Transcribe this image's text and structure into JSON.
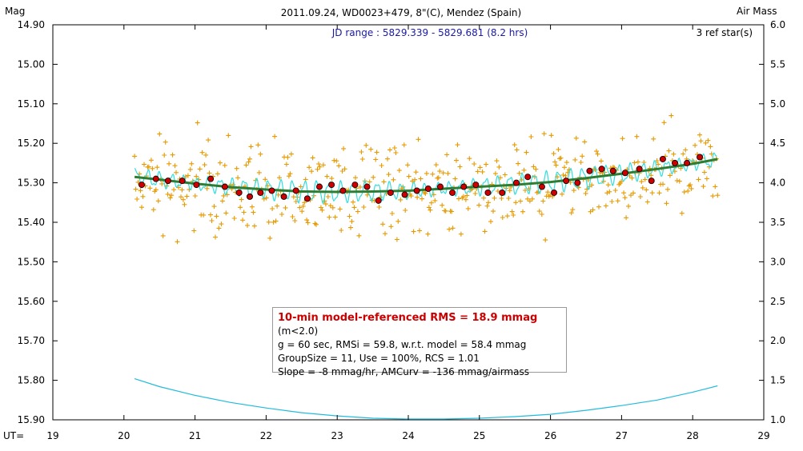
{
  "chart_data": {
    "type": "scatter",
    "title": "2011.09.24, WD0023+479, 8\"(C), Mendez (Spain)",
    "subtitle": "JD range : 5829.339 - 5829.681 (8.2 hrs)",
    "ref_stars": "3 ref star(s)",
    "ylabel_left": "Mag",
    "ylabel_right": "Air Mass",
    "xlabel": "UT=",
    "xlim": [
      19,
      29
    ],
    "ylim": [
      15.9,
      14.9
    ],
    "y2lim": [
      1.0,
      6.0
    ],
    "x_ticks": [
      "19",
      "20",
      "21",
      "22",
      "23",
      "24",
      "25",
      "26",
      "27",
      "28",
      "29"
    ],
    "y_ticks": [
      "14.90",
      "15.00",
      "15.10",
      "15.20",
      "15.30",
      "15.40",
      "15.50",
      "15.60",
      "15.70",
      "15.80",
      "15.90"
    ],
    "y2_ticks": [
      "6.0",
      "5.5",
      "5.0",
      "4.5",
      "4.0",
      "3.5",
      "3.0",
      "2.5",
      "2.0",
      "1.5",
      "1.0"
    ],
    "series": [
      {
        "name": "10-min averages",
        "color": "#cc0000",
        "x": [
          20.25,
          20.45,
          20.62,
          20.82,
          21.02,
          21.22,
          21.42,
          21.62,
          21.77,
          21.92,
          22.08,
          22.25,
          22.42,
          22.58,
          22.75,
          22.92,
          23.08,
          23.25,
          23.42,
          23.58,
          23.75,
          23.95,
          24.12,
          24.28,
          24.45,
          24.62,
          24.78,
          24.95,
          25.12,
          25.32,
          25.52,
          25.68,
          25.88,
          26.05,
          26.22,
          26.38,
          26.55,
          26.72,
          26.88,
          27.05,
          27.25,
          27.42,
          27.58,
          27.75,
          27.92,
          28.1
        ],
        "y": [
          15.305,
          15.29,
          15.295,
          15.295,
          15.305,
          15.29,
          15.31,
          15.325,
          15.335,
          15.325,
          15.32,
          15.335,
          15.32,
          15.34,
          15.31,
          15.305,
          15.32,
          15.305,
          15.31,
          15.345,
          15.325,
          15.33,
          15.32,
          15.315,
          15.31,
          15.325,
          15.31,
          15.305,
          15.325,
          15.325,
          15.3,
          15.285,
          15.31,
          15.325,
          15.295,
          15.3,
          15.27,
          15.265,
          15.27,
          15.275,
          15.265,
          15.295,
          15.24,
          15.25,
          15.25,
          15.235
        ]
      },
      {
        "name": "model",
        "color": "#2e7d32",
        "x": [
          20.15,
          20.5,
          21,
          21.5,
          22,
          22.5,
          23,
          23.5,
          24,
          24.5,
          25,
          25.5,
          26,
          26.5,
          27,
          27.5,
          28,
          28.35
        ],
        "y": [
          15.285,
          15.292,
          15.302,
          15.311,
          15.317,
          15.322,
          15.323,
          15.322,
          15.32,
          15.315,
          15.31,
          15.305,
          15.298,
          15.288,
          15.277,
          15.265,
          15.252,
          15.24
        ]
      },
      {
        "name": "air mass",
        "color": "#22bbdd",
        "x": [
          20.15,
          20.5,
          21,
          21.5,
          22,
          22.5,
          23,
          23.5,
          24,
          24.5,
          25,
          25.5,
          26,
          26.5,
          27,
          27.5,
          28,
          28.35
        ],
        "y2": [
          1.52,
          1.42,
          1.31,
          1.22,
          1.15,
          1.09,
          1.05,
          1.02,
          1.01,
          1.01,
          1.02,
          1.04,
          1.07,
          1.12,
          1.18,
          1.25,
          1.35,
          1.43
        ]
      }
    ]
  },
  "infobox": {
    "line1_main": "10-min model-referenced RMS = 18.9 mmag",
    "line1_note": "(m<2.0)",
    "line2": "g = 60 sec, RMSi = 59.8, w.r.t. model = 58.4 mmag",
    "line3": "GroupSize = 11, Use = 100%, RCS = 1.01",
    "line4": "Slope = -8 mmag/hr, AMCurv = -136 mmag/airmass"
  }
}
